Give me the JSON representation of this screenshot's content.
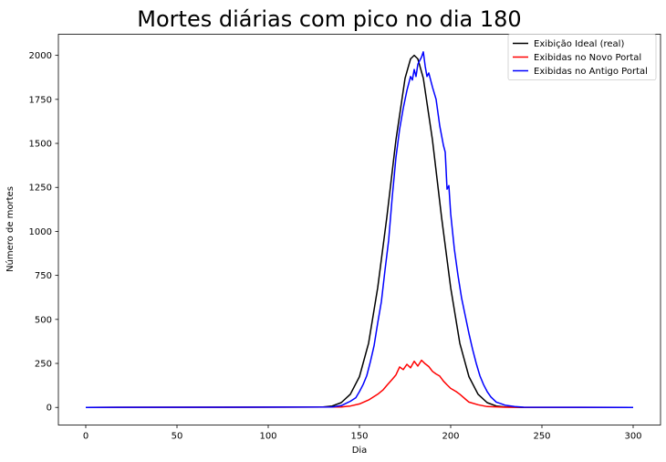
{
  "chart_data": {
    "type": "line",
    "title": "Mortes diárias com pico no dia 180",
    "xlabel": "Dia",
    "ylabel": "Número de mortes",
    "xlim": [
      -15,
      315
    ],
    "ylim": [
      -100,
      2120
    ],
    "xticks": [
      0,
      50,
      100,
      150,
      200,
      250,
      300
    ],
    "yticks": [
      0,
      250,
      500,
      750,
      1000,
      1250,
      1500,
      1750,
      2000
    ],
    "grid": false,
    "legend_position": "top-right",
    "series": [
      {
        "name": "Exibição Ideal (real)",
        "color": "#000000",
        "x": [
          0,
          130,
          135,
          140,
          145,
          150,
          155,
          160,
          165,
          170,
          175,
          178,
          180,
          182,
          185,
          190,
          195,
          200,
          205,
          210,
          215,
          220,
          225,
          230,
          235,
          240,
          300
        ],
        "values": [
          0,
          2,
          8,
          27,
          75,
          175,
          365,
          680,
          1080,
          1520,
          1870,
          1980,
          2000,
          1980,
          1870,
          1520,
          1080,
          680,
          365,
          175,
          75,
          27,
          8,
          2,
          1,
          0,
          0
        ]
      },
      {
        "name": "Exibidas no Novo Portal",
        "color": "#ff0000",
        "x": [
          0,
          140,
          145,
          150,
          155,
          160,
          163,
          165,
          168,
          170,
          172,
          174,
          176,
          178,
          180,
          182,
          184,
          186,
          188,
          190,
          192,
          194,
          196,
          198,
          200,
          203,
          205,
          208,
          210,
          215,
          220,
          230,
          300
        ],
        "values": [
          0,
          2,
          8,
          20,
          42,
          75,
          100,
          125,
          160,
          185,
          230,
          215,
          245,
          225,
          262,
          235,
          268,
          248,
          232,
          205,
          190,
          178,
          150,
          128,
          108,
          90,
          75,
          48,
          30,
          15,
          5,
          1,
          0
        ]
      },
      {
        "name": "Exibidas no Antigo Portal",
        "color": "#0000ff",
        "x": [
          0,
          135,
          140,
          145,
          148,
          150,
          152,
          154,
          156,
          158,
          160,
          162,
          164,
          166,
          168,
          170,
          172,
          174,
          176,
          178,
          179,
          180,
          181,
          182,
          183,
          184,
          185,
          186,
          187,
          188,
          190,
          192,
          194,
          196,
          197,
          198,
          199,
          200,
          202,
          204,
          206,
          208,
          210,
          212,
          214,
          216,
          218,
          220,
          222,
          225,
          228,
          230,
          235,
          240,
          300
        ],
        "values": [
          0,
          2,
          10,
          35,
          55,
          90,
          130,
          180,
          260,
          350,
          480,
          600,
          780,
          950,
          1200,
          1420,
          1580,
          1700,
          1800,
          1880,
          1860,
          1920,
          1880,
          1950,
          1970,
          1990,
          2020,
          1940,
          1880,
          1900,
          1820,
          1750,
          1600,
          1490,
          1450,
          1240,
          1260,
          1100,
          900,
          750,
          620,
          520,
          420,
          330,
          250,
          180,
          130,
          90,
          60,
          30,
          20,
          12,
          5,
          1,
          0
        ]
      }
    ]
  }
}
